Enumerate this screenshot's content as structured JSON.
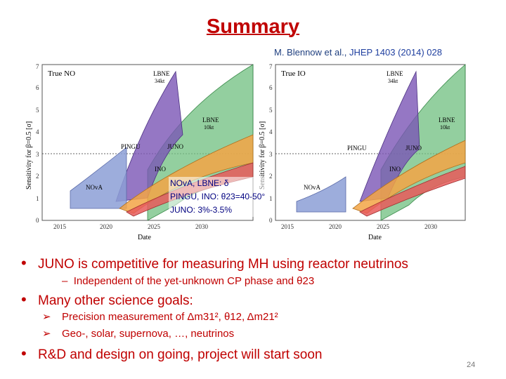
{
  "title": "Summary",
  "reference": {
    "authors": "M. Blennow et al.,",
    "journal": "JHEP 1403 (2014) 028"
  },
  "figure": {
    "left_panel": {
      "label": "True NO"
    },
    "right_panel": {
      "label": "True IO"
    },
    "y_axis_label": "Sensitivity for β=0.5 [σ]",
    "x_axis_label": "Date",
    "x_ticks": [
      "2015",
      "2020",
      "2025",
      "2030"
    ],
    "y_ticks": [
      "0",
      "1",
      "2",
      "3",
      "4",
      "5",
      "6",
      "7"
    ],
    "experiments": {
      "nova": "NOvA",
      "pingu": "PINGU",
      "juno": "JUNO",
      "ino": "INO",
      "lbne34": "LBNE",
      "lbne34_size": "34kt",
      "lbne10": "LBNE",
      "lbne10_size": "10kt"
    },
    "colors": {
      "nova": "#8c9fd6",
      "pingu": "#7a55b5",
      "juno": "#f3a545",
      "ino": "#e85a5a",
      "lbne": "#6fbf7f"
    }
  },
  "overlay": {
    "line1": "NOvA, LBNE:  δ",
    "line2": "PINGU, INO:  θ23=40-50°",
    "line3": "JUNO:  3%-3.5%"
  },
  "bullets": {
    "b1": "JUNO is competitive for measuring MH using reactor neutrinos",
    "b1_sub": "Independent of the yet-unknown CP phase and θ23",
    "b2": "Many other science goals:",
    "b2_sub1": "Precision measurement of  Δm31², θ12, Δm21²",
    "b2_sub2": "Geo-, solar, supernova, …, neutrinos",
    "b3": "R&D and design on going, project will start soon"
  },
  "page_number": "24"
}
